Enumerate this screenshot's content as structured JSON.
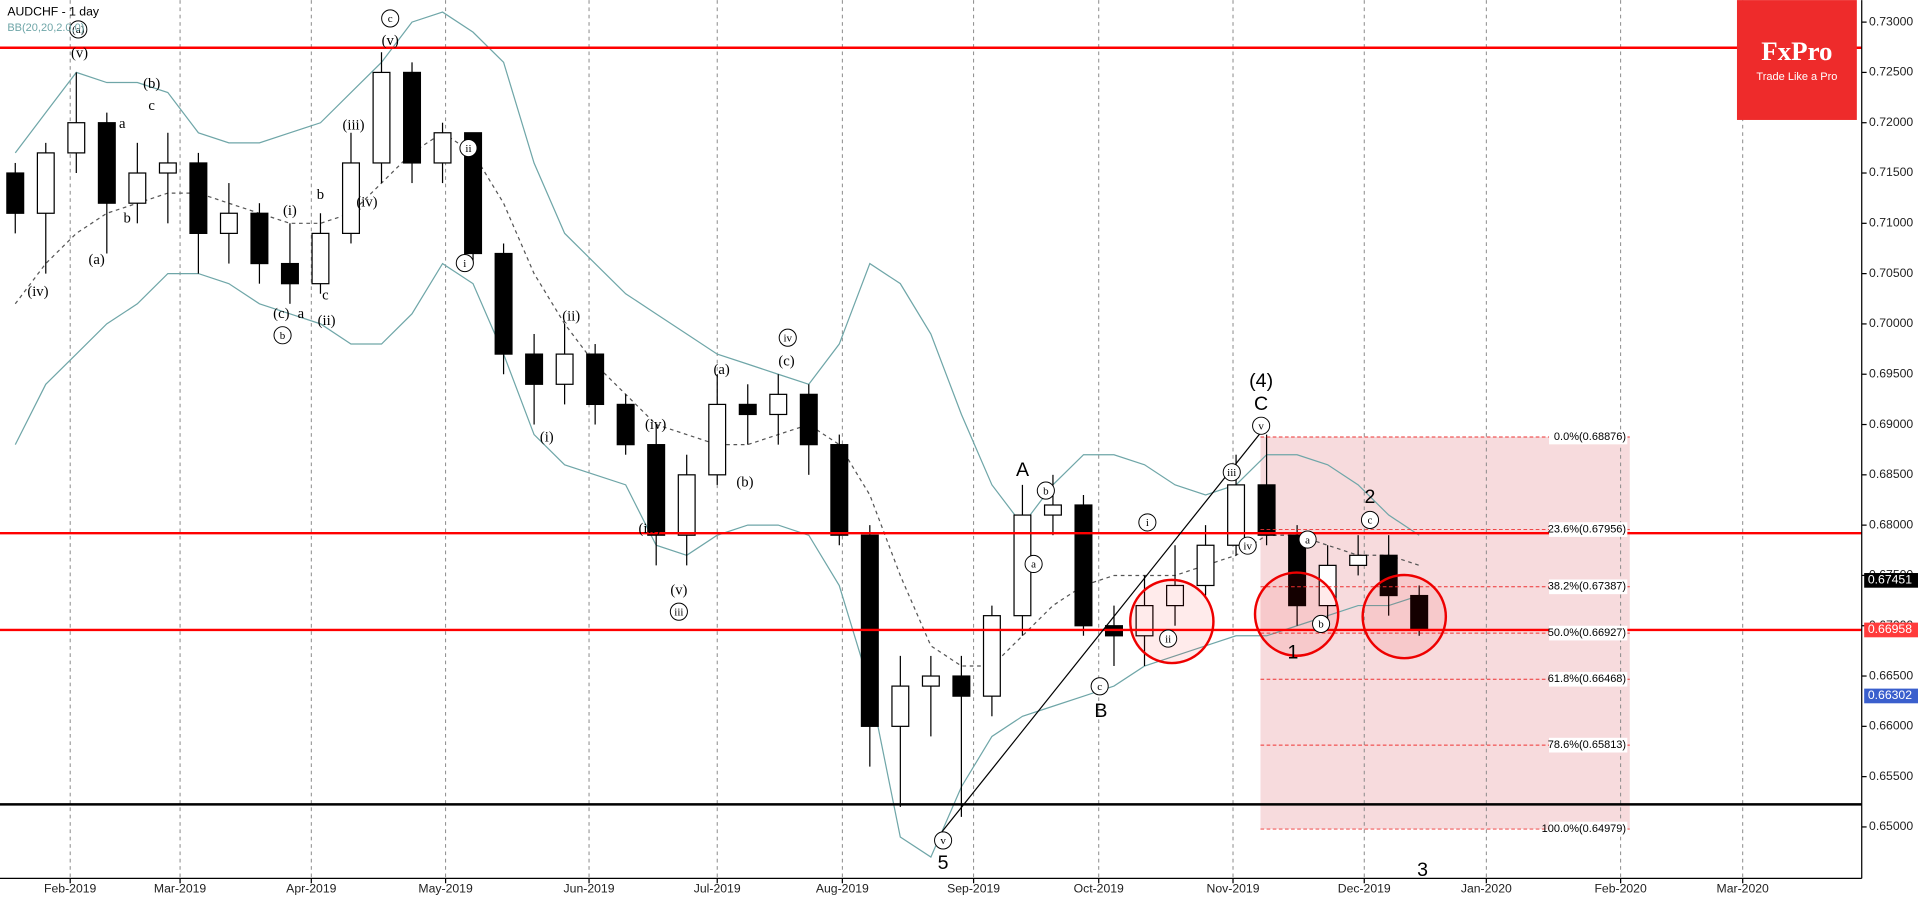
{
  "chart_data": {
    "type": "candlestick",
    "title": "AUDCHF  - 1 day",
    "indicator": "BB(20,20,2.0,0)",
    "xlim": [
      0,
      61
    ],
    "xticks": [
      {
        "value": 2.3,
        "label": "Feb-2019"
      },
      {
        "value": 5.9,
        "label": "Mar-2019"
      },
      {
        "value": 10.2,
        "label": "Apr-2019"
      },
      {
        "value": 14.6,
        "label": "May-2019"
      },
      {
        "value": 19.3,
        "label": "Jun-2019"
      },
      {
        "value": 23.5,
        "label": "Jul-2019"
      },
      {
        "value": 27.6,
        "label": "Aug-2019"
      },
      {
        "value": 31.9,
        "label": "Sep-2019"
      },
      {
        "value": 36.0,
        "label": "Oct-2019"
      },
      {
        "value": 40.4,
        "label": "Nov-2019"
      },
      {
        "value": 44.7,
        "label": "Dec-2019"
      },
      {
        "value": 48.7,
        "label": "Jan-2020"
      },
      {
        "value": 53.1,
        "label": "Feb-2020"
      },
      {
        "value": 57.1,
        "label": "Mar-2020"
      }
    ],
    "ylim": [
      0.64489,
      0.73219
    ],
    "yticks": [
      {
        "value": 0.65,
        "label": "0.65000"
      },
      {
        "value": 0.655,
        "label": "0.65500"
      },
      {
        "value": 0.66,
        "label": "0.66000"
      },
      {
        "value": 0.665,
        "label": "0.66500"
      },
      {
        "value": 0.67,
        "label": "0.67000"
      },
      {
        "value": 0.675,
        "label": "0.67500"
      },
      {
        "value": 0.68,
        "label": "0.68000"
      },
      {
        "value": 0.685,
        "label": "0.68500"
      },
      {
        "value": 0.69,
        "label": "0.69000"
      },
      {
        "value": 0.695,
        "label": "0.69500"
      },
      {
        "value": 0.7,
        "label": "0.70000"
      },
      {
        "value": 0.705,
        "label": "0.70500"
      },
      {
        "value": 0.71,
        "label": "0.71000"
      },
      {
        "value": 0.715,
        "label": "0.71500"
      },
      {
        "value": 0.72,
        "label": "0.72000"
      },
      {
        "value": 0.725,
        "label": "0.72500"
      },
      {
        "value": 0.73,
        "label": "0.73000"
      }
    ],
    "grid": true,
    "open": [
      0.715,
      0.711,
      0.717,
      0.72,
      0.712,
      0.715,
      0.716,
      0.709,
      0.711,
      0.706,
      0.704,
      0.709,
      0.716,
      0.725,
      0.716,
      0.719,
      0.707,
      0.697,
      0.694,
      0.697,
      0.692,
      0.688,
      0.679,
      0.685,
      0.692,
      0.691,
      0.693,
      0.688,
      0.679,
      0.66,
      0.664,
      0.665,
      0.663,
      0.671,
      0.681,
      0.682,
      0.67,
      0.669,
      0.672,
      0.674,
      0.678,
      0.684,
      0.679,
      0.672,
      0.676,
      0.677,
      0.673
    ],
    "high": [
      0.716,
      0.718,
      0.725,
      0.721,
      0.718,
      0.719,
      0.717,
      0.714,
      0.712,
      0.71,
      0.711,
      0.719,
      0.727,
      0.726,
      0.72,
      0.719,
      0.708,
      0.699,
      0.7,
      0.698,
      0.693,
      0.69,
      0.687,
      0.695,
      0.694,
      0.695,
      0.694,
      0.689,
      0.68,
      0.667,
      0.667,
      0.667,
      0.672,
      0.684,
      0.685,
      0.683,
      0.672,
      0.675,
      0.678,
      0.68,
      0.687,
      0.689,
      0.68,
      0.678,
      0.679,
      0.679,
      0.674
    ],
    "low": [
      0.709,
      0.705,
      0.715,
      0.707,
      0.71,
      0.71,
      0.705,
      0.706,
      0.704,
      0.702,
      0.703,
      0.708,
      0.714,
      0.714,
      0.714,
      0.706,
      0.695,
      0.69,
      0.692,
      0.69,
      0.687,
      0.676,
      0.676,
      0.684,
      0.688,
      0.688,
      0.685,
      0.678,
      0.656,
      0.652,
      0.659,
      0.651,
      0.661,
      0.669,
      0.679,
      0.669,
      0.666,
      0.666,
      0.67,
      0.673,
      0.677,
      0.678,
      0.67,
      0.67,
      0.675,
      0.671,
      0.669
    ],
    "close": [
      0.711,
      0.717,
      0.72,
      0.712,
      0.715,
      0.716,
      0.709,
      0.711,
      0.706,
      0.704,
      0.709,
      0.716,
      0.725,
      0.716,
      0.719,
      0.707,
      0.697,
      0.694,
      0.697,
      0.692,
      0.688,
      0.679,
      0.685,
      0.692,
      0.691,
      0.693,
      0.688,
      0.679,
      0.66,
      0.664,
      0.665,
      0.663,
      0.671,
      0.681,
      0.682,
      0.67,
      0.669,
      0.672,
      0.674,
      0.678,
      0.684,
      0.679,
      0.672,
      0.676,
      0.677,
      0.673,
      0.6696
    ],
    "bollinger": {
      "color": "#6fa6a8",
      "upper": [
        0.717,
        0.721,
        0.725,
        0.724,
        0.724,
        0.723,
        0.719,
        0.718,
        0.718,
        0.719,
        0.72,
        0.723,
        0.726,
        0.73,
        0.731,
        0.729,
        0.726,
        0.716,
        0.709,
        0.706,
        0.703,
        0.701,
        0.699,
        0.697,
        0.696,
        0.695,
        0.694,
        0.698,
        0.706,
        0.704,
        0.699,
        0.691,
        0.684,
        0.68,
        0.684,
        0.687,
        0.687,
        0.686,
        0.684,
        0.683,
        0.684,
        0.687,
        0.687,
        0.686,
        0.684,
        0.681,
        0.679
      ],
      "middle": [
        0.702,
        0.706,
        0.709,
        0.711,
        0.712,
        0.713,
        0.713,
        0.712,
        0.711,
        0.71,
        0.71,
        0.711,
        0.714,
        0.717,
        0.719,
        0.717,
        0.712,
        0.705,
        0.7,
        0.696,
        0.693,
        0.69,
        0.689,
        0.688,
        0.688,
        0.689,
        0.69,
        0.688,
        0.683,
        0.675,
        0.668,
        0.666,
        0.666,
        0.669,
        0.672,
        0.674,
        0.675,
        0.675,
        0.675,
        0.676,
        0.677,
        0.679,
        0.679,
        0.678,
        0.677,
        0.677,
        0.676
      ],
      "lower": [
        0.688,
        0.694,
        0.697,
        0.7,
        0.702,
        0.705,
        0.705,
        0.704,
        0.702,
        0.701,
        0.7,
        0.698,
        0.698,
        0.701,
        0.706,
        0.704,
        0.697,
        0.689,
        0.686,
        0.685,
        0.684,
        0.678,
        0.677,
        0.679,
        0.68,
        0.68,
        0.679,
        0.674,
        0.664,
        0.649,
        0.647,
        0.654,
        0.659,
        0.661,
        0.662,
        0.663,
        0.664,
        0.666,
        0.667,
        0.668,
        0.669,
        0.669,
        0.67,
        0.671,
        0.672,
        0.672,
        0.673
      ]
    },
    "levels": [
      {
        "value": 0.72745,
        "color": "#ff0000"
      },
      {
        "value": 0.6792,
        "color": "#ff0000"
      },
      {
        "value": 0.66958,
        "color": "#ff0000"
      },
      {
        "value": 0.65224,
        "color": "#000000"
      }
    ],
    "price_labels": [
      {
        "value": 0.67451,
        "label": "0.67451",
        "color": "#000000"
      },
      {
        "value": 0.66958,
        "label": "0.66958",
        "color": "#ff3b3b"
      },
      {
        "value": 0.66302,
        "label": "0.66302",
        "color": "#3a5fcd"
      }
    ],
    "fibonacci": {
      "xrange": [
        41.3,
        53.4
      ],
      "color": "#f4cfd2",
      "levels": [
        {
          "value": 0.68876,
          "label": "0.0%(0.68876)"
        },
        {
          "value": 0.67956,
          "label": "23.6%(0.67956)"
        },
        {
          "value": 0.67387,
          "label": "38.2%(0.67387)"
        },
        {
          "value": 0.66927,
          "label": "50.0%(0.66927)"
        },
        {
          "value": 0.66468,
          "label": "61.8%(0.66468)"
        },
        {
          "value": 0.65813,
          "label": "78.6%(0.65813)"
        },
        {
          "value": 0.64979,
          "label": "100.0%(0.64979)"
        }
      ]
    },
    "annotations": [
      "(4)",
      "C",
      "A",
      "B",
      "5",
      "1",
      "2",
      "3",
      "v",
      "v",
      "c",
      "ii",
      "b",
      "c",
      "a",
      "iv",
      "iii",
      "i",
      "b",
      "a",
      "(a)",
      "(v)",
      "(b)",
      "a",
      "c",
      "b",
      "(a)",
      "(iv)",
      "(c)",
      "b",
      "a",
      "c",
      "(ii)",
      "(i)",
      "b",
      "(iii)",
      "(iv)",
      "c",
      "(v)",
      "ii",
      "i",
      "(ii)",
      "(i)",
      "(iv)",
      "(iii)",
      "(v)",
      "iii",
      "(a)",
      "iv",
      "(c)",
      "(b)"
    ]
  },
  "brand": {
    "name": "FxPro",
    "tagline": "Trade Like a Pro"
  }
}
